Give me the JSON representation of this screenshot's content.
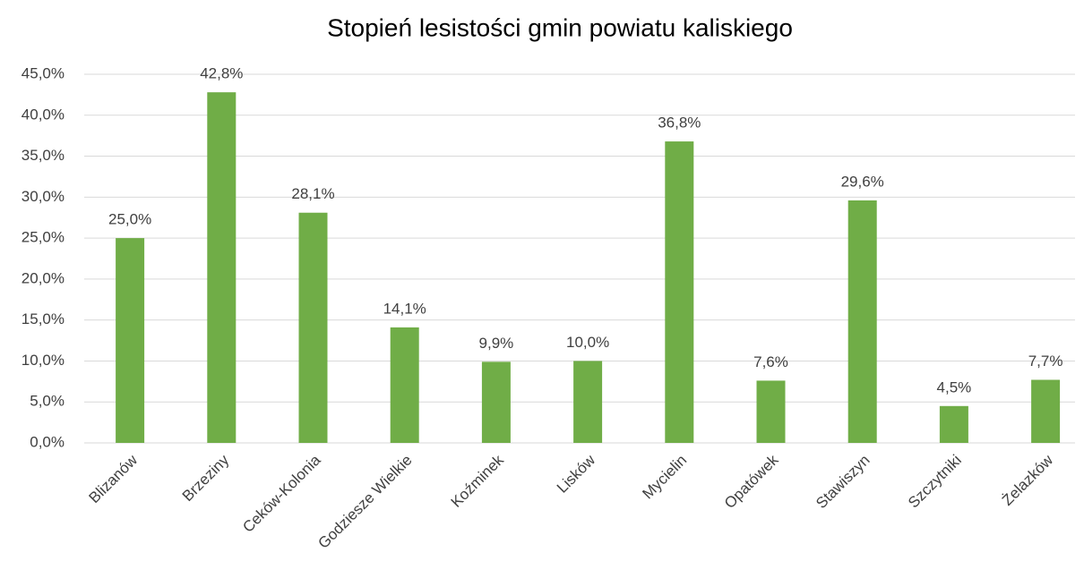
{
  "chart_data": {
    "type": "bar",
    "title": "Stopień lesistości gmin powiatu kaliskiego",
    "categories": [
      "Blizanów",
      "Brzeziny",
      "Ceków-Kolonia",
      "Godziesze Wielkie",
      "Koźminek",
      "Lisków",
      "Mycielin",
      "Opatówek",
      "Stawiszyn",
      "Szczytniki",
      "Żelazków"
    ],
    "values": [
      25.0,
      42.8,
      28.1,
      14.1,
      9.9,
      10.0,
      36.8,
      7.6,
      29.6,
      4.5,
      7.7
    ],
    "value_labels": [
      "25,0%",
      "42,8%",
      "28,1%",
      "14,1%",
      "9,9%",
      "10,0%",
      "36,8%",
      "7,6%",
      "29,6%",
      "4,5%",
      "7,7%"
    ],
    "color": "#70ad47",
    "ylim": [
      0,
      45
    ],
    "yticks": [
      {
        "value": 0,
        "label": "0,0%"
      },
      {
        "value": 5,
        "label": "5,0%"
      },
      {
        "value": 10,
        "label": "10,0%"
      },
      {
        "value": 15,
        "label": "15,0%"
      },
      {
        "value": 20,
        "label": "20,0%"
      },
      {
        "value": 25,
        "label": "25,0%"
      },
      {
        "value": 30,
        "label": "30,0%"
      },
      {
        "value": 35,
        "label": "35,0%"
      },
      {
        "value": 40,
        "label": "40,0%"
      },
      {
        "value": 45,
        "label": "45,0%"
      }
    ],
    "grid": true
  }
}
